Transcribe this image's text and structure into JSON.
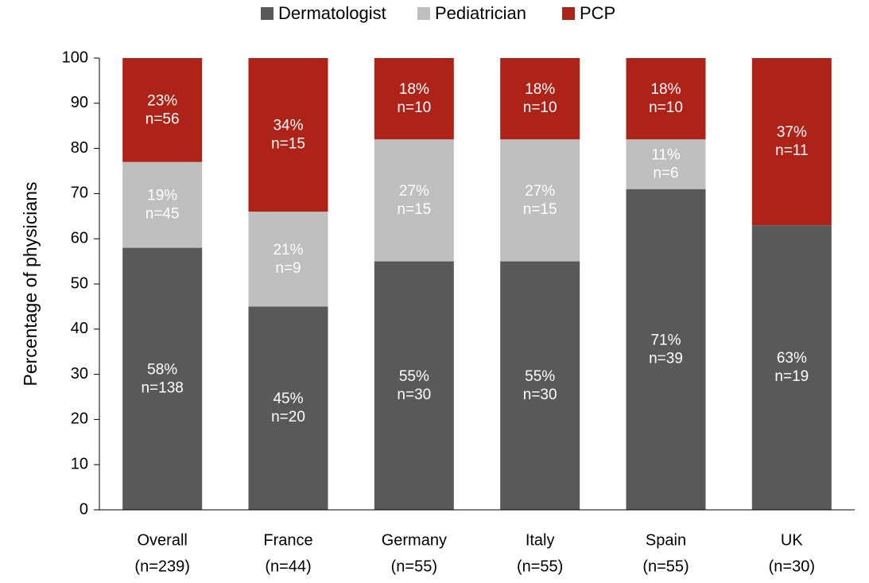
{
  "chart_data": {
    "type": "stacked_bar",
    "y_label": "Percentage of physicians",
    "categories": [
      "Overall",
      "France",
      "Germany",
      "Italy",
      "Spain",
      "UK"
    ],
    "category_counts": [
      "(n=239)",
      "(n=44)",
      "(n=55)",
      "(n=55)",
      "(n=55)",
      "(n=30)"
    ],
    "series": [
      {
        "name": "Dermatologist",
        "color": "#595959",
        "values": [
          58,
          45,
          55,
          55,
          71,
          63
        ],
        "value_labels": [
          "58%",
          "45%",
          "55%",
          "55%",
          "71%",
          "63%"
        ],
        "n_labels": [
          "n=138",
          "n=20",
          "n=30",
          "n=30",
          "n=39",
          "n=19"
        ]
      },
      {
        "name": "Pediatrician",
        "color": "#bfbfbf",
        "values": [
          19,
          21,
          27,
          27,
          11,
          null
        ],
        "value_labels": [
          "19%",
          "21%",
          "27%",
          "27%",
          "11%",
          null
        ],
        "n_labels": [
          "n=45",
          "n=9",
          "n=15",
          "n=15",
          "n=6",
          null
        ]
      },
      {
        "name": "PCP",
        "color": "#ae2318",
        "values": [
          23,
          34,
          18,
          18,
          18,
          37
        ],
        "value_labels": [
          "23%",
          "34%",
          "18%",
          "18%",
          "18%",
          "37%"
        ],
        "n_labels": [
          "n=56",
          "n=15",
          "n=10",
          "n=10",
          "n=10",
          "n=11"
        ]
      }
    ],
    "ylim": [
      0,
      100
    ],
    "yticks": [
      0,
      10,
      20,
      30,
      40,
      50,
      60,
      70,
      80,
      90,
      100
    ],
    "legend": "top"
  }
}
